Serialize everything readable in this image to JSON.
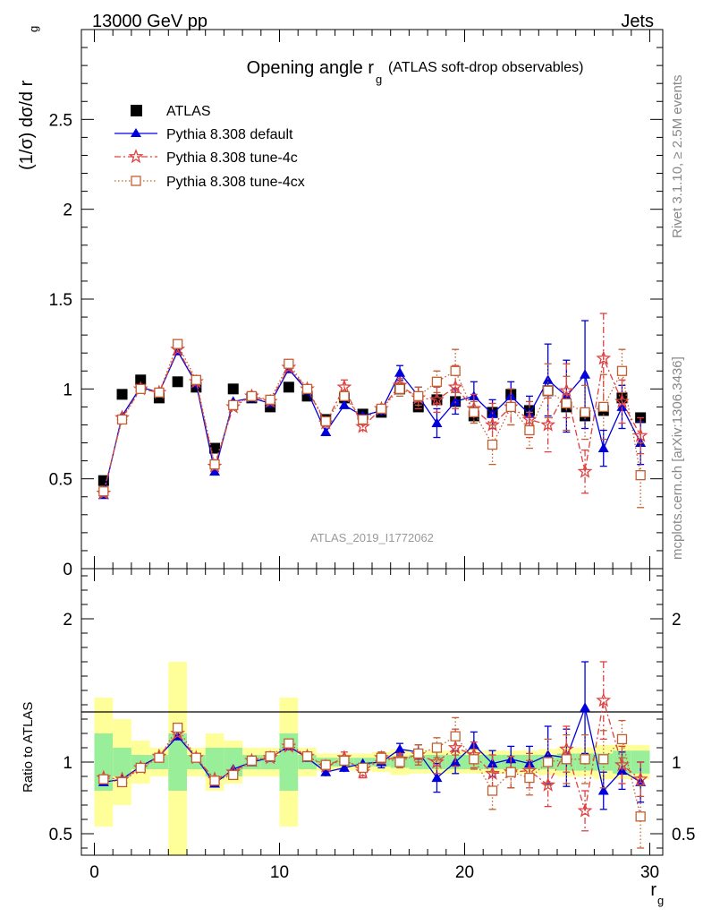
{
  "header": {
    "left": "13000 GeV pp",
    "right": "Jets"
  },
  "side_labels": {
    "rivet": "Rivet 3.1.10, ≥ 2.5M events",
    "mcplots": "mcplots.cern.ch [arXiv:1306.3436]"
  },
  "chart_data": [
    {
      "type": "scatter",
      "panel": "main",
      "title": "Opening angle r",
      "title_sub": "g",
      "title_suffix": "(ATLAS soft-drop observables)",
      "ylabel": "(1/σ) dσ/d r",
      "ylabel_sub": "g",
      "analysis_label": "ATLAS_2019_I1772062",
      "xlim": [
        -0.7,
        30.7
      ],
      "ylim": [
        0,
        3.0
      ],
      "y_ticks": [
        0,
        0.5,
        1,
        1.5,
        2,
        2.5
      ],
      "y_tick_labels": [
        "0",
        "0.5",
        "1",
        "1.5",
        "2",
        "2.5"
      ],
      "legend_position": "top-left",
      "colors": {
        "atlas": "#000000",
        "default": "#0000dd",
        "tune4c": "#e04040",
        "tune4cx": "#c06030"
      },
      "x": [
        0.5,
        1.5,
        2.5,
        3.5,
        4.5,
        5.5,
        6.5,
        7.5,
        8.5,
        9.5,
        10.5,
        11.5,
        12.5,
        13.5,
        14.5,
        15.5,
        16.5,
        17.5,
        18.5,
        19.5,
        20.5,
        21.5,
        22.5,
        23.5,
        24.5,
        25.5,
        26.5,
        27.5,
        28.5,
        29.5
      ],
      "series": [
        {
          "name": "ATLAS",
          "marker": "square",
          "values": [
            0.49,
            0.97,
            1.05,
            0.95,
            1.04,
            1.01,
            0.67,
            1.0,
            0.95,
            0.9,
            1.01,
            0.96,
            0.83,
            0.95,
            0.86,
            0.87,
            1.0,
            0.9,
            0.94,
            0.93,
            0.85,
            0.87,
            0.97,
            0.88,
            0.99,
            0.9,
            0.85,
            0.88,
            0.95,
            0.84
          ]
        },
        {
          "name": "Pythia 8.308 default",
          "marker": "triangle",
          "values": [
            0.41,
            0.85,
            1.01,
            0.98,
            1.21,
            1.03,
            0.54,
            0.93,
            0.95,
            0.92,
            1.11,
            0.99,
            0.76,
            0.91,
            0.85,
            0.88,
            1.09,
            0.96,
            0.81,
            0.93,
            0.96,
            0.86,
            0.96,
            0.86,
            1.05,
            0.96,
            1.08,
            0.67,
            0.9,
            0.7
          ],
          "errors": [
            0.01,
            0.01,
            0.01,
            0.01,
            0.01,
            0.01,
            0.01,
            0.01,
            0.01,
            0.01,
            0.02,
            0.02,
            0.02,
            0.02,
            0.02,
            0.03,
            0.04,
            0.05,
            0.08,
            0.07,
            0.08,
            0.08,
            0.08,
            0.1,
            0.2,
            0.2,
            0.3,
            0.1,
            0.12,
            0.12
          ]
        },
        {
          "name": "Pythia 8.308 tune-4c",
          "marker": "star",
          "values": [
            0.42,
            0.84,
            1.0,
            0.98,
            1.22,
            1.04,
            0.57,
            0.9,
            0.96,
            0.93,
            1.12,
            1.0,
            0.81,
            1.01,
            0.79,
            0.89,
            1.02,
            0.95,
            0.94,
            1.01,
            0.89,
            0.8,
            0.9,
            0.83,
            0.8,
            0.99,
            0.54,
            1.17,
            0.93,
            0.74
          ],
          "errors": [
            0.01,
            0.01,
            0.01,
            0.01,
            0.01,
            0.01,
            0.01,
            0.01,
            0.01,
            0.01,
            0.02,
            0.02,
            0.02,
            0.04,
            0.03,
            0.03,
            0.04,
            0.06,
            0.07,
            0.12,
            0.08,
            0.12,
            0.1,
            0.1,
            0.15,
            0.15,
            0.12,
            0.25,
            0.12,
            0.1
          ]
        },
        {
          "name": "Pythia 8.308 tune-4cx",
          "marker": "open-square",
          "values": [
            0.43,
            0.83,
            1.0,
            0.98,
            1.25,
            1.05,
            0.58,
            0.91,
            0.96,
            0.94,
            1.14,
            1.0,
            0.82,
            0.96,
            0.83,
            0.89,
            1.0,
            0.96,
            1.04,
            1.1,
            0.87,
            0.69,
            0.9,
            0.77,
            0.99,
            0.92,
            0.87,
            0.9,
            1.1,
            0.52
          ],
          "errors": [
            0.01,
            0.01,
            0.01,
            0.01,
            0.01,
            0.01,
            0.01,
            0.01,
            0.01,
            0.01,
            0.02,
            0.02,
            0.02,
            0.02,
            0.02,
            0.03,
            0.04,
            0.05,
            0.06,
            0.12,
            0.06,
            0.11,
            0.1,
            0.1,
            0.15,
            0.15,
            0.15,
            0.18,
            0.12,
            0.18
          ]
        }
      ]
    },
    {
      "type": "scatter",
      "panel": "ratio",
      "ylabel": "Ratio to ATLAS",
      "xlabel": "r",
      "xlabel_sub": "g",
      "xlim": [
        -0.7,
        30.7
      ],
      "ylim": [
        0.35,
        2.35
      ],
      "x_ticks": [
        0,
        10,
        20,
        30
      ],
      "x_tick_labels": [
        "0",
        "10",
        "20",
        "30"
      ],
      "y_ticks": [
        0.5,
        1,
        2
      ],
      "y_tick_labels": [
        "0.5",
        "1",
        "2"
      ],
      "x": [
        0.5,
        1.5,
        2.5,
        3.5,
        4.5,
        5.5,
        6.5,
        7.5,
        8.5,
        9.5,
        10.5,
        11.5,
        12.5,
        13.5,
        14.5,
        15.5,
        16.5,
        17.5,
        18.5,
        19.5,
        20.5,
        21.5,
        22.5,
        23.5,
        24.5,
        25.5,
        26.5,
        27.5,
        28.5,
        29.5
      ],
      "band_inner": [
        0.2,
        0.1,
        0.05,
        0.05,
        0.2,
        0.05,
        0.1,
        0.1,
        0.05,
        0.05,
        0.2,
        0.05,
        0.03,
        0.03,
        0.03,
        0.03,
        0.04,
        0.05,
        0.05,
        0.05,
        0.05,
        0.05,
        0.05,
        0.05,
        0.05,
        0.06,
        0.06,
        0.06,
        0.08,
        0.08
      ],
      "band_outer": [
        0.45,
        0.3,
        0.15,
        0.1,
        0.7,
        0.1,
        0.2,
        0.15,
        0.1,
        0.1,
        0.45,
        0.1,
        0.06,
        0.06,
        0.06,
        0.07,
        0.09,
        0.08,
        0.08,
        0.08,
        0.08,
        0.08,
        0.08,
        0.08,
        0.09,
        0.1,
        0.1,
        0.12,
        0.12,
        0.12
      ],
      "series": [
        {
          "name": "Pythia 8.308 default",
          "marker": "triangle",
          "values": [
            0.86,
            0.88,
            0.97,
            1.04,
            1.18,
            1.03,
            0.85,
            0.95,
            1.0,
            1.03,
            1.11,
            1.03,
            0.93,
            0.96,
            0.99,
            1.0,
            1.09,
            1.07,
            0.89,
            1.0,
            1.12,
            0.99,
            1.02,
            0.99,
            1.05,
            1.03,
            1.38,
            0.8,
            0.94,
            0.86
          ],
          "errors": [
            0.02,
            0.02,
            0.01,
            0.01,
            0.01,
            0.01,
            0.01,
            0.01,
            0.02,
            0.01,
            0.02,
            0.02,
            0.03,
            0.03,
            0.03,
            0.04,
            0.04,
            0.05,
            0.1,
            0.08,
            0.09,
            0.09,
            0.09,
            0.12,
            0.2,
            0.2,
            0.32,
            0.13,
            0.13,
            0.14
          ]
        },
        {
          "name": "Pythia 8.308 tune-4c",
          "marker": "star",
          "values": [
            0.89,
            0.88,
            0.96,
            1.04,
            1.2,
            1.03,
            0.88,
            0.93,
            1.01,
            1.03,
            1.11,
            1.04,
            0.97,
            1.03,
            0.93,
            1.03,
            1.02,
            1.05,
            1.0,
            1.1,
            1.05,
            0.92,
            0.93,
            0.94,
            0.84,
            1.09,
            0.66,
            1.43,
            0.98,
            0.88
          ],
          "errors": [
            0.02,
            0.02,
            0.01,
            0.01,
            0.01,
            0.01,
            0.01,
            0.01,
            0.01,
            0.01,
            0.02,
            0.02,
            0.03,
            0.04,
            0.04,
            0.04,
            0.04,
            0.07,
            0.08,
            0.13,
            0.09,
            0.13,
            0.11,
            0.12,
            0.15,
            0.16,
            0.14,
            0.27,
            0.13,
            0.12
          ]
        },
        {
          "name": "Pythia 8.308 tune-4cx",
          "marker": "open-square",
          "values": [
            0.88,
            0.86,
            0.96,
            1.03,
            1.24,
            1.03,
            0.87,
            0.91,
            1.01,
            1.04,
            1.13,
            1.04,
            0.98,
            1.01,
            0.96,
            1.03,
            1.0,
            1.06,
            1.1,
            1.18,
            1.02,
            0.8,
            0.93,
            0.89,
            1.0,
            1.02,
            1.02,
            1.02,
            1.16,
            0.62
          ],
          "errors": [
            0.02,
            0.02,
            0.01,
            0.01,
            0.01,
            0.01,
            0.01,
            0.01,
            0.01,
            0.01,
            0.02,
            0.02,
            0.03,
            0.02,
            0.03,
            0.04,
            0.04,
            0.06,
            0.07,
            0.13,
            0.07,
            0.13,
            0.11,
            0.12,
            0.16,
            0.17,
            0.17,
            0.2,
            0.13,
            0.22
          ]
        }
      ]
    }
  ]
}
